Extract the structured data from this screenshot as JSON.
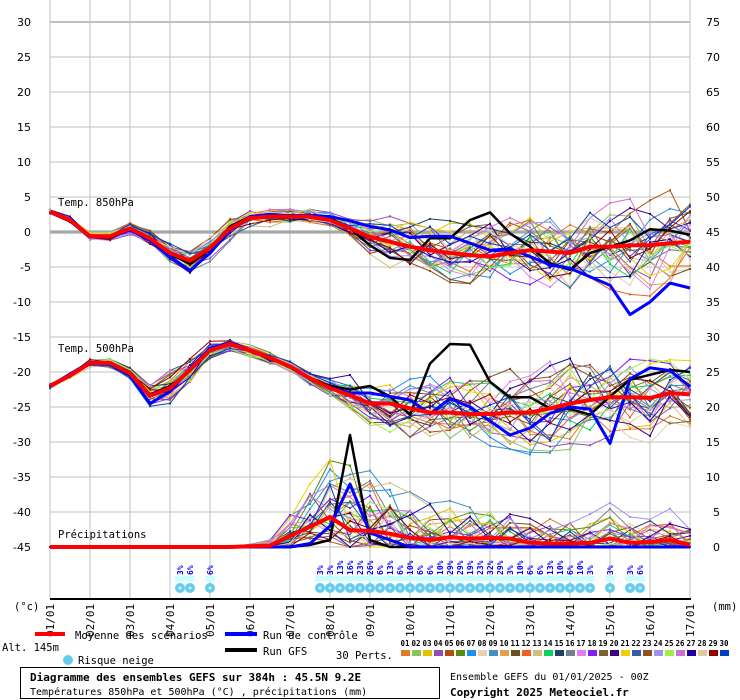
{
  "chart_data": {
    "type": "line",
    "title": "Diagramme des ensembles GEFS sur 384h : 45.5N 9.2E",
    "subtitle": "Températures 850hPa et 500hPa (°C) , précipitations (mm)",
    "run_info": "Ensemble GEFS du 01/01/2025 - 00Z",
    "copyright": "Copyright 2025 Meteociel.fr",
    "altitude": "Alt. 145m",
    "left_unit": "(°c)",
    "right_unit": "(mm)",
    "left_ticks": [
      "30",
      "25",
      "20",
      "15",
      "10",
      "5",
      "0",
      "-5",
      "-10",
      "-15",
      "-20",
      "-25",
      "-30",
      "-35",
      "-40",
      "-45"
    ],
    "left_range": [
      -45,
      30
    ],
    "right_ticks": [
      "75",
      "70",
      "65",
      "60",
      "55",
      "50",
      "45",
      "40",
      "35",
      "30",
      "25",
      "20",
      "15",
      "10",
      "5",
      "0"
    ],
    "right_range": [
      0,
      75
    ],
    "x_labels": [
      "01/01",
      "02/01",
      "03/01",
      "04/01",
      "05/01",
      "06/01",
      "07/01",
      "08/01",
      "09/01",
      "10/01",
      "11/01",
      "12/01",
      "13/01",
      "14/01",
      "15/01",
      "16/01",
      "17/01"
    ],
    "x_range_hours": [
      0,
      384
    ],
    "step_hours": 12,
    "panel_labels": {
      "t850": "Temp. 850hPa",
      "t500": "Temp. 500hPa",
      "precip": "Précipitations"
    },
    "series": {
      "t850": {
        "mean": [
          2.9,
          1.7,
          -0.6,
          -0.6,
          0.5,
          -0.9,
          -3.0,
          -4.1,
          -2.3,
          0.5,
          2.0,
          2.2,
          2.2,
          2.2,
          1.7,
          0.5,
          -0.7,
          -1.4,
          -2.1,
          -2.6,
          -3.0,
          -3.3,
          -3.5,
          -3.0,
          -2.6,
          -2.8,
          -3.0,
          -2.1,
          -2.1,
          -1.9,
          -1.9,
          -1.6,
          -1.4
        ],
        "control": [
          2.8,
          1.6,
          -0.7,
          -0.7,
          0.3,
          -1.2,
          -3.5,
          -5.5,
          -3.0,
          0.3,
          2.2,
          2.5,
          2.3,
          2.4,
          2.2,
          1.6,
          0.8,
          0.3,
          -0.8,
          -0.6,
          -0.6,
          -1.6,
          -2.6,
          -2.4,
          -3.5,
          -4.7,
          -5.2,
          -6.4,
          -7.6,
          -11.8,
          -10.0,
          -7.3,
          -8.0
        ],
        "gfs": [
          2.8,
          1.5,
          -0.5,
          -0.8,
          0.6,
          -0.8,
          -3.2,
          -4.5,
          -2.5,
          0.8,
          2.2,
          2.2,
          2.4,
          2.3,
          2.0,
          0.5,
          -1.9,
          -3.7,
          -4.0,
          -0.9,
          -0.9,
          1.7,
          2.8,
          -0.2,
          -2.1,
          -4.5,
          -5.4,
          -3.0,
          -2.1,
          -1.2,
          0.4,
          0.2,
          -0.4
        ],
        "perturbation_spread": [
          0.3,
          0.4,
          0.5,
          0.6,
          0.8,
          1,
          1.3,
          1.5,
          1.5,
          1.3,
          1,
          1,
          1,
          1,
          1,
          1.3,
          2,
          2.5,
          3,
          3.3,
          3.5,
          3.8,
          4,
          4.2,
          4.5,
          4.6,
          4.8,
          5,
          5,
          5,
          5,
          5,
          5
        ]
      },
      "t500": {
        "mean": [
          -22,
          -20.5,
          -18.7,
          -18.7,
          -20.2,
          -23.4,
          -22.3,
          -19.7,
          -16.9,
          -16,
          -16.9,
          -18,
          -19.2,
          -20.9,
          -22.3,
          -23.3,
          -24.5,
          -24.5,
          -25.2,
          -25.8,
          -25.8,
          -26,
          -26,
          -25.8,
          -25.8,
          -25.2,
          -24.5,
          -24,
          -23.6,
          -23.6,
          -23.7,
          -23,
          -23.2
        ],
        "control": [
          -22,
          -20.3,
          -18.6,
          -18.8,
          -20.5,
          -24.5,
          -22.8,
          -19.5,
          -16.6,
          -15.8,
          -16.8,
          -18,
          -19.3,
          -21,
          -22.2,
          -23,
          -23,
          -23.5,
          -24,
          -26,
          -23.8,
          -25,
          -27,
          -29,
          -28,
          -25.9,
          -25,
          -25.3,
          -30.2,
          -21,
          -19.4,
          -19.8,
          -22.1
        ],
        "gfs": [
          -22,
          -20.4,
          -18.8,
          -18.6,
          -20,
          -23.2,
          -22,
          -19.8,
          -17,
          -16.1,
          -17,
          -18.1,
          -19.2,
          -20.8,
          -22,
          -22.5,
          -22,
          -23.5,
          -26.1,
          -18.8,
          -16,
          -16.1,
          -21.4,
          -23.6,
          -23.6,
          -25.2,
          -25.3,
          -26.1,
          -23.5,
          -21.1,
          -20.4,
          -19.7,
          -20
        ],
        "perturbation_spread": [
          0.3,
          0.4,
          0.5,
          0.6,
          0.8,
          1.5,
          2,
          1.5,
          1,
          0.8,
          0.7,
          0.7,
          0.7,
          0.8,
          1.2,
          2,
          3,
          3.5,
          4,
          4.2,
          4.4,
          4.5,
          4.6,
          4.7,
          4.8,
          4.8,
          4.8,
          4.8,
          4.8,
          4.8,
          4.8,
          4.8,
          4.8
        ]
      },
      "precip": {
        "mean": [
          0,
          0,
          0,
          0,
          0,
          0,
          0,
          0,
          0,
          0,
          0.1,
          0.2,
          1.6,
          2.9,
          4.3,
          2.4,
          2.3,
          1.9,
          1.3,
          1.0,
          1.4,
          1.2,
          1.3,
          1.2,
          0.6,
          0.5,
          0.5,
          0.6,
          1.2,
          0.6,
          0.7,
          1.0,
          0.3
        ],
        "control": [
          0,
          0,
          0,
          0,
          0,
          0,
          0,
          0,
          0,
          0,
          0,
          0,
          0,
          0.5,
          3,
          9,
          2,
          1,
          0,
          0,
          0,
          0,
          0,
          0,
          0,
          0,
          0,
          0,
          0,
          0,
          0,
          0,
          0
        ],
        "gfs": [
          0,
          0,
          0,
          0,
          0,
          0,
          0,
          0,
          0,
          0,
          0,
          0,
          0,
          0.3,
          1,
          16,
          1,
          0,
          0,
          0,
          0,
          0,
          0,
          0,
          0,
          0,
          0,
          0,
          0,
          0,
          0,
          0,
          0
        ],
        "perturbation_spread": [
          0,
          0,
          0,
          0,
          0,
          0,
          0,
          0,
          0.1,
          0.1,
          0.2,
          0.5,
          2,
          3.5,
          5,
          5,
          4.5,
          4,
          4,
          3.5,
          3.5,
          3,
          3,
          3,
          2.5,
          2.5,
          2.5,
          2.5,
          3,
          2.5,
          2.5,
          2.5,
          2
        ]
      }
    },
    "snow_risk": [
      {
        "hour": 78,
        "pct": "3%"
      },
      {
        "hour": 84,
        "pct": "6%"
      },
      {
        "hour": 96,
        "pct": "6%"
      },
      {
        "hour": 162,
        "pct": "3%"
      },
      {
        "hour": 168,
        "pct": "3%"
      },
      {
        "hour": 174,
        "pct": "13%"
      },
      {
        "hour": 180,
        "pct": "16%"
      },
      {
        "hour": 186,
        "pct": "23%"
      },
      {
        "hour": 192,
        "pct": "26%"
      },
      {
        "hour": 198,
        "pct": "6%"
      },
      {
        "hour": 204,
        "pct": "13%"
      },
      {
        "hour": 210,
        "pct": "6%"
      },
      {
        "hour": 216,
        "pct": "10%"
      },
      {
        "hour": 222,
        "pct": "6%"
      },
      {
        "hour": 228,
        "pct": "6%"
      },
      {
        "hour": 234,
        "pct": "10%"
      },
      {
        "hour": 240,
        "pct": "29%"
      },
      {
        "hour": 246,
        "pct": "29%"
      },
      {
        "hour": 252,
        "pct": "19%"
      },
      {
        "hour": 258,
        "pct": "23%"
      },
      {
        "hour": 264,
        "pct": "32%"
      },
      {
        "hour": 270,
        "pct": "29%"
      },
      {
        "hour": 276,
        "pct": "3%"
      },
      {
        "hour": 282,
        "pct": "10%"
      },
      {
        "hour": 288,
        "pct": "6%"
      },
      {
        "hour": 294,
        "pct": "6%"
      },
      {
        "hour": 300,
        "pct": "13%"
      },
      {
        "hour": 306,
        "pct": "10%"
      },
      {
        "hour": 312,
        "pct": "6%"
      },
      {
        "hour": 318,
        "pct": "10%"
      },
      {
        "hour": 324,
        "pct": "3%"
      },
      {
        "hour": 336,
        "pct": "3%"
      },
      {
        "hour": 348,
        "pct": "3%"
      },
      {
        "hour": 354,
        "pct": "6%"
      }
    ],
    "legend": {
      "mean": "Moyenne des scénarios",
      "control": "Run de contrôle",
      "gfs": "Run GFS",
      "snow": "Risque neige",
      "perts_label": "30 Perts.",
      "colors": {
        "mean": "#ff0000",
        "control": "#0000ff",
        "gfs": "#000000",
        "snow": "#66ccee"
      },
      "perturbations": [
        {
          "id": "01",
          "color": "#e07b2a"
        },
        {
          "id": "02",
          "color": "#8ec060"
        },
        {
          "id": "03",
          "color": "#e8c000"
        },
        {
          "id": "04",
          "color": "#9050b0"
        },
        {
          "id": "05",
          "color": "#b05010"
        },
        {
          "id": "06",
          "color": "#5a8a10"
        },
        {
          "id": "07",
          "color": "#2090f0"
        },
        {
          "id": "08",
          "color": "#e8d0b0"
        },
        {
          "id": "09",
          "color": "#4090c0"
        },
        {
          "id": "10",
          "color": "#e0a050"
        },
        {
          "id": "11",
          "color": "#705020"
        },
        {
          "id": "12",
          "color": "#f06020"
        },
        {
          "id": "13",
          "color": "#d0c080"
        },
        {
          "id": "14",
          "color": "#10d060"
        },
        {
          "id": "15",
          "color": "#204060"
        },
        {
          "id": "16",
          "color": "#708090"
        },
        {
          "id": "17",
          "color": "#e080f0"
        },
        {
          "id": "18",
          "color": "#8020f0"
        },
        {
          "id": "19",
          "color": "#806030"
        },
        {
          "id": "20",
          "color": "#400080"
        },
        {
          "id": "21",
          "color": "#f0d000"
        },
        {
          "id": "22",
          "color": "#3060a0"
        },
        {
          "id": "23",
          "color": "#905020"
        },
        {
          "id": "24",
          "color": "#a090f0"
        },
        {
          "id": "25",
          "color": "#a0f040"
        },
        {
          "id": "26",
          "color": "#d070d0"
        },
        {
          "id": "27",
          "color": "#2000a0"
        },
        {
          "id": "28",
          "color": "#e0c8a0"
        },
        {
          "id": "29",
          "color": "#900000"
        },
        {
          "id": "30",
          "color": "#0040c0"
        }
      ]
    }
  }
}
